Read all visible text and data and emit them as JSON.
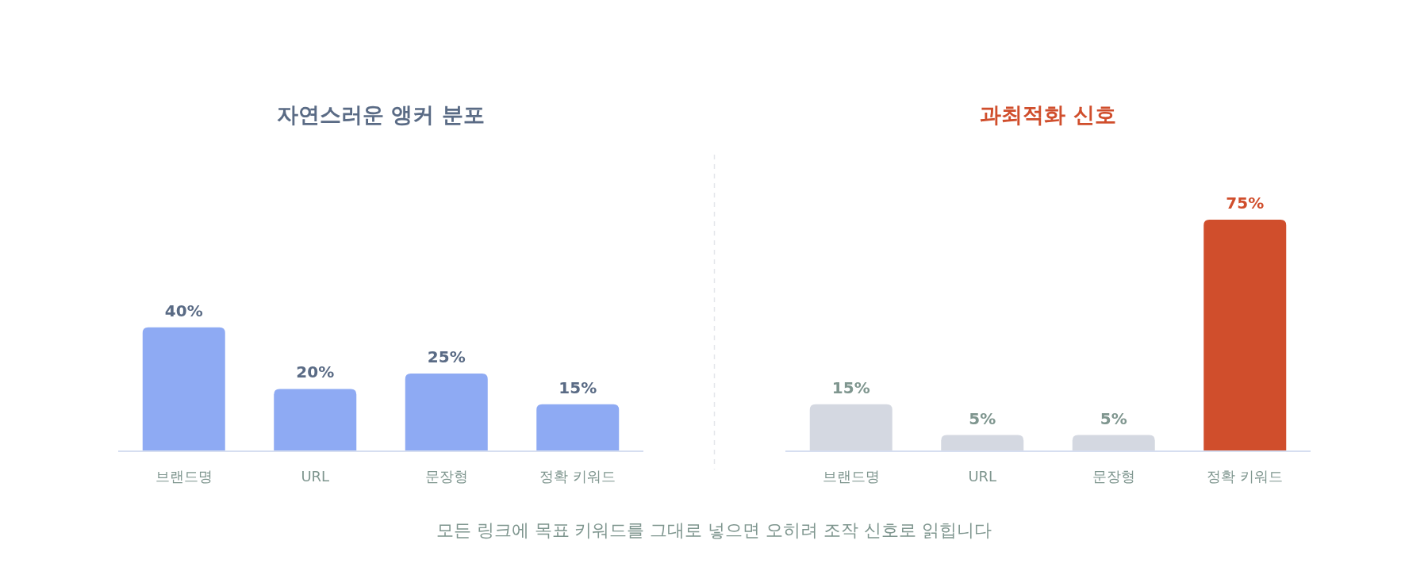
{
  "chart_data": [
    {
      "type": "bar",
      "title": "자연스러운 앵커 분포",
      "categories": [
        "브랜드명",
        "URL",
        "문장형",
        "정확 키워드"
      ],
      "values": [
        40,
        20,
        25,
        15
      ],
      "colors": [
        "#8eaaf3",
        "#8eaaf3",
        "#8eaaf3",
        "#8eaaf3"
      ],
      "value_labels": [
        "40%",
        "20%",
        "25%",
        "15%"
      ],
      "annotations": [
        "모든 링크에 목표 키워드를 그대로 넣으면 오히려 조작 신호로 읽힙니다"
      ]
    },
    {
      "type": "bar",
      "title": "과최적화 신호",
      "categories": [
        "브랜드명",
        "URL",
        "문장형",
        "정확 키워드"
      ],
      "values": [
        15,
        5,
        5,
        75
      ],
      "colors": [
        "#d4d8e1",
        "#d4d8e1",
        "#d4d8e1",
        "#d04e2c"
      ],
      "value_labels": [
        "15%",
        "5%",
        "5%",
        "75%"
      ]
    }
  ]
}
